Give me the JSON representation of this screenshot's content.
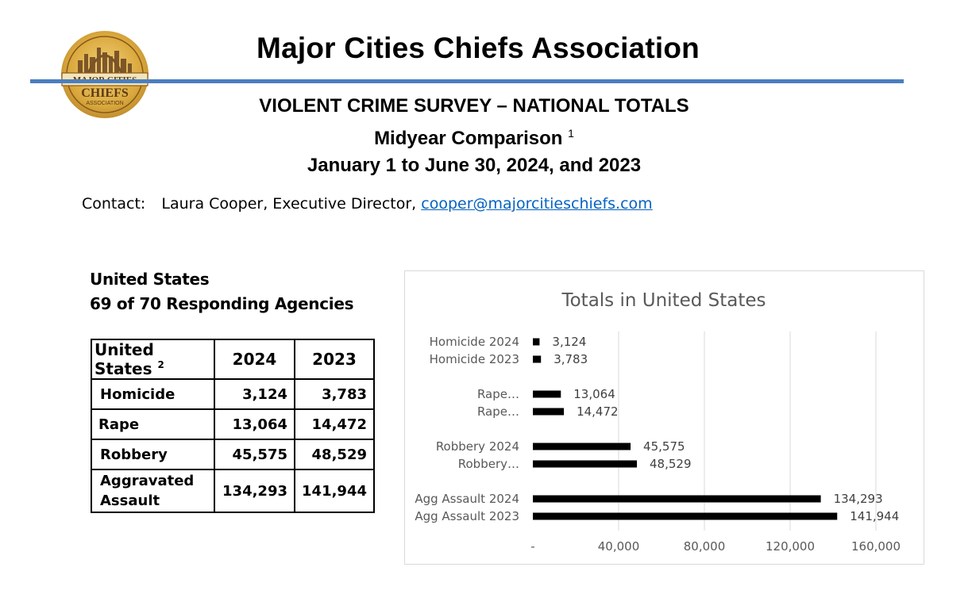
{
  "logo": {
    "text_top": "MAJOR CITIES",
    "text_mid": "CHIEFS",
    "text_bot": "ASSOCIATION"
  },
  "header": {
    "title": "Major Cities Chiefs Association",
    "subtitle1": "VIOLENT CRIME SURVEY – NATIONAL TOTALS",
    "subtitle2": "Midyear Comparison",
    "subtitle2_note": "1",
    "subtitle3": "January 1 to June 30, 2024, and 2023"
  },
  "contact": {
    "label": "Contact:",
    "text": "Laura Cooper, Executive Director,",
    "email": "cooper@majorcitieschiefs.com"
  },
  "summary": {
    "region": "United States",
    "responding": "69 of 70 Responding Agencies"
  },
  "table": {
    "headers": [
      "United States",
      "2024",
      "2023"
    ],
    "header_note": "2",
    "rows": [
      {
        "crime": "Homicide",
        "y2024": "3,124",
        "y2023": "3,783"
      },
      {
        "crime": "Rape",
        "y2024": "13,064",
        "y2023": "14,472"
      },
      {
        "crime": "Robbery",
        "y2024": "45,575",
        "y2023": "48,529"
      },
      {
        "crime": "Aggravated Assault",
        "y2024": "134,293",
        "y2023": "141,944"
      }
    ]
  },
  "chart_data": {
    "type": "bar",
    "orientation": "horizontal",
    "title": "Totals in United States",
    "xlabel": "",
    "ylabel": "",
    "xlim": [
      0,
      160000
    ],
    "x_ticks": [
      "-",
      "40,000",
      "80,000",
      "120,000",
      "160,000"
    ],
    "grid": true,
    "bar_color": "#000000",
    "groups": [
      {
        "bars": [
          {
            "label": "Homicide 2024",
            "value": 3124,
            "data_label": "3,124"
          },
          {
            "label": "Homicide 2023",
            "value": 3783,
            "data_label": "3,783"
          }
        ]
      },
      {
        "bars": [
          {
            "label": "Rape…",
            "value": 13064,
            "data_label": "13,064"
          },
          {
            "label": "Rape…",
            "value": 14472,
            "data_label": "14,472"
          }
        ]
      },
      {
        "bars": [
          {
            "label": "Robbery 2024",
            "value": 45575,
            "data_label": "45,575"
          },
          {
            "label": "Robbery…",
            "value": 48529,
            "data_label": "48,529"
          }
        ]
      },
      {
        "bars": [
          {
            "label": "Agg Assault 2024",
            "value": 134293,
            "data_label": "134,293"
          },
          {
            "label": "Agg Assault 2023",
            "value": 141944,
            "data_label": "141,944"
          }
        ]
      }
    ]
  }
}
